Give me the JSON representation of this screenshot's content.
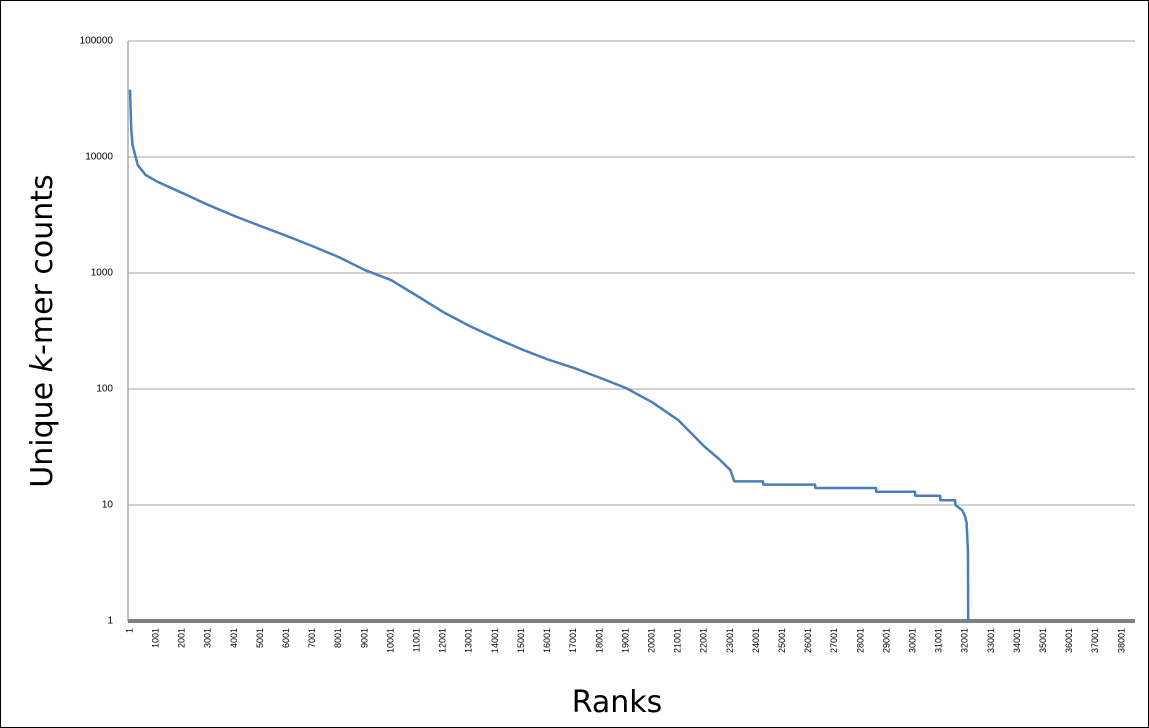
{
  "chart_data": {
    "type": "line",
    "xlabel": "Ranks",
    "ylabel": [
      "Unique ",
      "k",
      "-mer counts"
    ],
    "log_y": true,
    "grid": true,
    "color": "#4a7ebb",
    "x": [
      1,
      50,
      100,
      300,
      600,
      1001,
      2001,
      3001,
      4001,
      5001,
      6001,
      7001,
      8001,
      9001,
      10001,
      11001,
      12001,
      13001,
      14001,
      15001,
      16001,
      17001,
      18001,
      19001,
      20001,
      21001,
      22001,
      22600,
      23000,
      23150,
      24250,
      24260,
      26245,
      26255,
      28580,
      28590,
      30075,
      30085,
      31035,
      31045,
      31610,
      31620,
      31880,
      31990,
      32050,
      32100,
      32110
    ],
    "values": [
      38000,
      17000,
      12600,
      8500,
      7000,
      6200,
      4900,
      3860,
      3100,
      2540,
      2090,
      1700,
      1370,
      1060,
      870,
      635,
      460,
      350,
      275,
      220,
      180,
      152,
      125,
      102,
      77,
      54,
      32,
      24.5,
      20,
      16,
      16,
      15,
      15,
      14,
      14,
      13,
      13,
      12,
      12,
      11,
      11,
      10,
      9,
      8,
      7,
      4,
      1
    ],
    "xlim": [
      1,
      38500
    ],
    "xticks": [
      1,
      1001,
      2001,
      3001,
      4001,
      5001,
      6001,
      7001,
      8001,
      9001,
      10001,
      11001,
      12001,
      13001,
      14001,
      15001,
      16001,
      17001,
      18001,
      19001,
      20001,
      21001,
      22001,
      23001,
      24001,
      25001,
      26001,
      27001,
      28001,
      29001,
      30001,
      31001,
      32001,
      33001,
      34001,
      35001,
      36001,
      37001,
      38001
    ],
    "ylim": [
      1,
      100000
    ],
    "yticks": [
      1,
      10,
      100,
      1000,
      10000,
      100000
    ]
  }
}
